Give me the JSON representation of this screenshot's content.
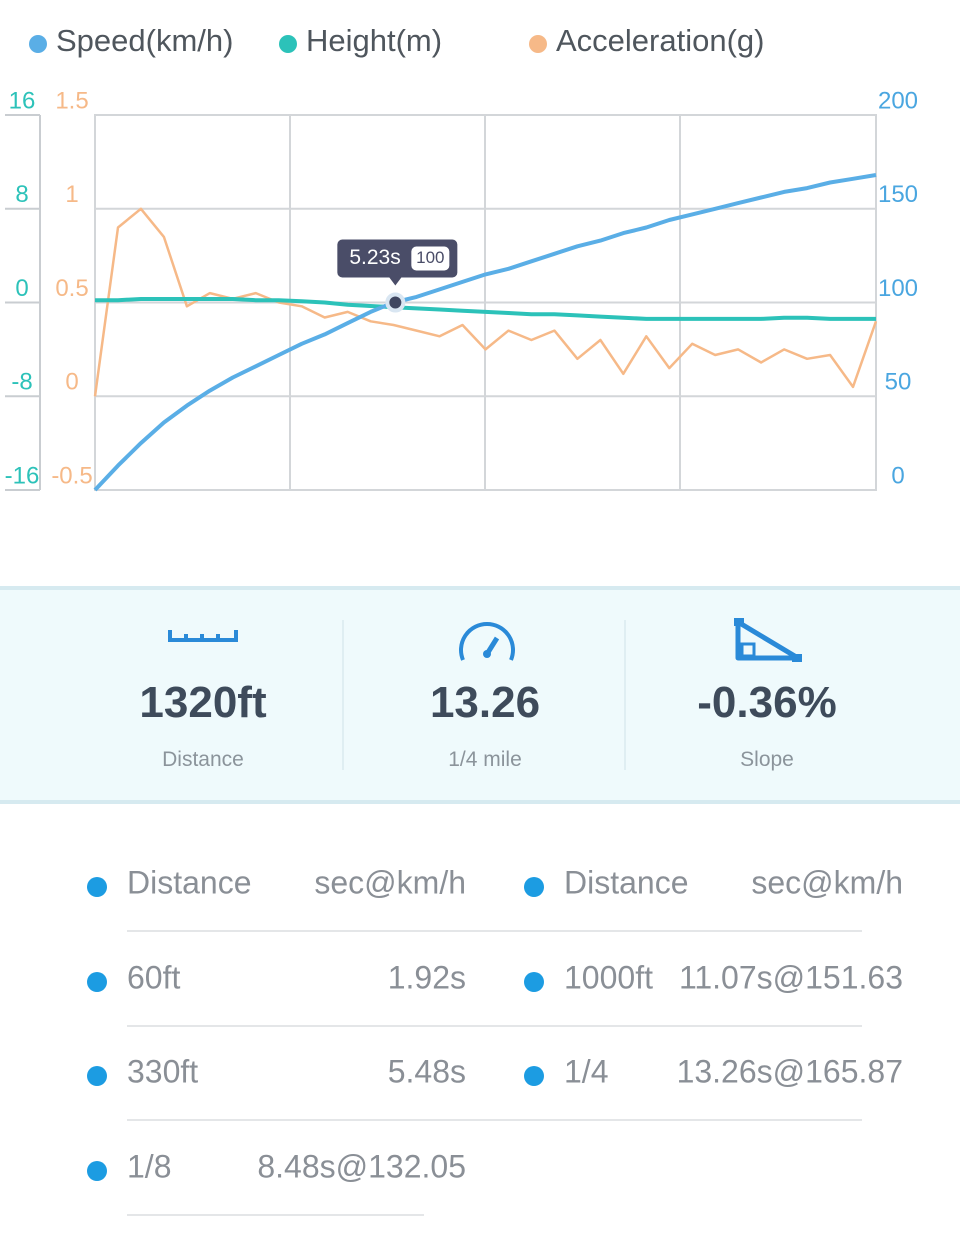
{
  "chart_data": {
    "type": "line",
    "x": [
      0,
      0.4,
      0.8,
      1.2,
      1.6,
      2,
      2.4,
      2.8,
      3.2,
      3.6,
      4,
      4.4,
      4.8,
      5.2,
      5.6,
      6,
      6.4,
      6.8,
      7.2,
      7.6,
      8,
      8.4,
      8.8,
      9.2,
      9.6,
      10,
      10.4,
      10.8,
      11.2,
      11.6,
      12,
      12.4,
      12.8,
      13.2,
      13.6
    ],
    "xlim": [
      0,
      13.6
    ],
    "series": [
      {
        "name": "Speed(km/h)",
        "color": "#5aaee6",
        "axis": "y2",
        "values": [
          0,
          13,
          25,
          36,
          45,
          53,
          60,
          66,
          72,
          78,
          83,
          89,
          95,
          100,
          103,
          107,
          111,
          115,
          118,
          122,
          126,
          130,
          133,
          137,
          140,
          144,
          147,
          150,
          153,
          156,
          159,
          161,
          164,
          166,
          168
        ]
      },
      {
        "name": "Height(m)",
        "color": "#2cc2b9",
        "axis": "y",
        "values": [
          0.2,
          0.2,
          0.3,
          0.3,
          0.3,
          0.3,
          0.3,
          0.2,
          0.2,
          0.1,
          0.0,
          -0.2,
          -0.3,
          -0.4,
          -0.5,
          -0.6,
          -0.7,
          -0.8,
          -0.9,
          -1.0,
          -1.0,
          -1.1,
          -1.2,
          -1.3,
          -1.4,
          -1.4,
          -1.4,
          -1.4,
          -1.4,
          -1.4,
          -1.3,
          -1.3,
          -1.4,
          -1.4,
          -1.4
        ]
      },
      {
        "name": "Acceleration(g)",
        "color": "#f6b988",
        "axis": "y3",
        "values": [
          0.0,
          0.9,
          1.0,
          0.85,
          0.48,
          0.55,
          0.52,
          0.55,
          0.5,
          0.48,
          0.42,
          0.45,
          0.4,
          0.38,
          0.35,
          0.32,
          0.38,
          0.25,
          0.35,
          0.3,
          0.35,
          0.2,
          0.3,
          0.12,
          0.32,
          0.15,
          0.28,
          0.22,
          0.25,
          0.18,
          0.25,
          0.2,
          0.22,
          0.05,
          0.4
        ]
      }
    ],
    "ylim": [
      -16,
      16
    ],
    "yticks": [
      -16,
      -8,
      0,
      8,
      16
    ],
    "y3lim": [
      -0.5,
      1.5
    ],
    "y3ticks": [
      -0.5,
      0,
      0.5,
      1,
      1.5
    ],
    "y2lim": [
      0,
      200
    ],
    "y2ticks": [
      0,
      50,
      100,
      150,
      200
    ],
    "grid": true,
    "tooltip": {
      "x": 5.23,
      "x_label": "5.23s",
      "y": 100
    }
  },
  "stats": [
    {
      "value": "1320ft",
      "label": "Distance"
    },
    {
      "value": "13.26",
      "label": "1/4 mile"
    },
    {
      "value": "-0.36%",
      "label": "Slope"
    }
  ],
  "results": {
    "left": {
      "header": [
        "Distance",
        "sec@km/h"
      ],
      "rows": [
        [
          "60ft",
          "1.92s"
        ],
        [
          "330ft",
          "5.48s"
        ],
        [
          "1/8",
          "8.48s@132.05"
        ]
      ]
    },
    "right": {
      "header": [
        "Distance",
        "sec@km/h"
      ],
      "rows": [
        [
          "1000ft",
          "11.07s@151.63"
        ],
        [
          "1/4",
          "13.26s@165.87"
        ]
      ]
    }
  }
}
